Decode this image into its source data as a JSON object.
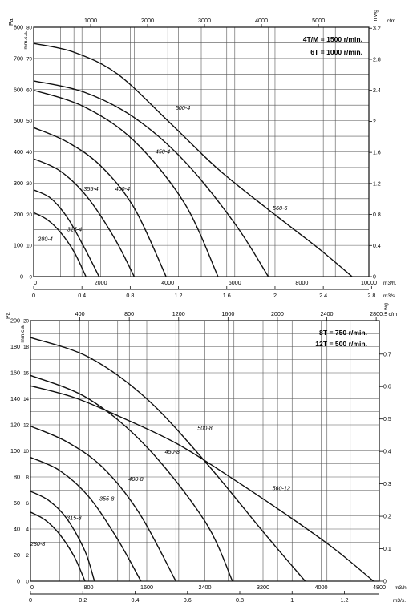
{
  "chart_data": [
    {
      "type": "line",
      "legend": [
        "4T/M = 1500 r/min.",
        "6T = 1000 r/min."
      ],
      "units": {
        "pa": "Pa",
        "mmca": "mm.c.a.",
        "inwg": "in wg",
        "cfm": "cfm",
        "m3h": "m3/h.",
        "m3s": "m3/s."
      },
      "axes": {
        "x_m3h": {
          "range": [
            0,
            10000
          ],
          "ticks": [
            "0",
            "2000",
            "4000",
            "6000",
            "8000",
            "10000"
          ]
        },
        "x_cfm": {
          "ticks": [
            "1000",
            "2000",
            "3000",
            "4000",
            "5000"
          ]
        },
        "x_m3s": {
          "ticks": [
            "0",
            "0.4",
            "0.8",
            "1.2",
            "1.6",
            "2",
            "2.4",
            "2.8"
          ]
        },
        "y_pa": {
          "range": [
            0,
            800
          ],
          "ticks": [
            "0",
            "100",
            "200",
            "300",
            "400",
            "500",
            "600",
            "700",
            "800"
          ]
        },
        "y_mmca": {
          "range": [
            0,
            80
          ],
          "ticks": [
            "0",
            "10",
            "20",
            "30",
            "40",
            "50",
            "60",
            "70",
            "80"
          ]
        },
        "y_inwg": {
          "ticks": [
            "0",
            "0.4",
            "0.8",
            "1.2",
            "1.6",
            "2",
            "2.4",
            "2.8",
            "3.2"
          ]
        }
      },
      "series": [
        {
          "name": "280-4",
          "points": [
            [
              0,
              205
            ],
            [
              400,
              183
            ],
            [
              800,
              142
            ],
            [
              1200,
              80
            ],
            [
              1560,
              0
            ]
          ]
        },
        {
          "name": "315-4",
          "points": [
            [
              0,
              278
            ],
            [
              500,
              252
            ],
            [
              1000,
              190
            ],
            [
              1500,
              95
            ],
            [
              1950,
              0
            ]
          ]
        },
        {
          "name": "355-4",
          "points": [
            [
              0,
              378
            ],
            [
              800,
              338
            ],
            [
              1600,
              255
            ],
            [
              2400,
              125
            ],
            [
              3000,
              0
            ]
          ]
        },
        {
          "name": "400-4",
          "points": [
            [
              0,
              478
            ],
            [
              1000,
              432
            ],
            [
              2000,
              355
            ],
            [
              3000,
              220
            ],
            [
              3950,
              0
            ]
          ]
        },
        {
          "name": "450-4",
          "points": [
            [
              0,
              598
            ],
            [
              1500,
              545
            ],
            [
              3000,
              435
            ],
            [
              4500,
              235
            ],
            [
              5500,
              0
            ]
          ]
        },
        {
          "name": "500-4",
          "points": [
            [
              0,
              628
            ],
            [
              1500,
              592
            ],
            [
              3000,
              510
            ],
            [
              4500,
              370
            ],
            [
              6000,
              170
            ],
            [
              7000,
              0
            ]
          ]
        },
        {
          "name": "560-6",
          "points": [
            [
              0,
              748
            ],
            [
              1200,
              720
            ],
            [
              2500,
              650
            ],
            [
              4000,
              500
            ],
            [
              5500,
              345
            ],
            [
              7000,
              215
            ],
            [
              8500,
              90
            ],
            [
              9500,
              0
            ]
          ]
        }
      ],
      "annotations": [
        {
          "text": "280-4",
          "x": 350,
          "y": 115
        },
        {
          "text": "315-4",
          "x": 1220,
          "y": 145
        },
        {
          "text": "355-4",
          "x": 1710,
          "y": 275
        },
        {
          "text": "400-4",
          "x": 2650,
          "y": 275
        },
        {
          "text": "450-4",
          "x": 3850,
          "y": 395
        },
        {
          "text": "500-4",
          "x": 4450,
          "y": 535
        },
        {
          "text": "560-6",
          "x": 7350,
          "y": 213
        }
      ]
    },
    {
      "type": "line",
      "legend": [
        "8T = 750 r/min.",
        "12T = 500 r/min."
      ],
      "units": {
        "pa": "Pa",
        "mmca": "mm.c.a.",
        "inwg": "in wg",
        "cfm": "cfm",
        "m3h": "m3/h.",
        "m3s": "m3/s."
      },
      "axes": {
        "x_m3h": {
          "range": [
            0,
            4800
          ],
          "ticks": [
            "0",
            "800",
            "1600",
            "2400",
            "3200",
            "4000",
            "4800"
          ]
        },
        "x_cfm": {
          "ticks": [
            "400",
            "800",
            "1200",
            "1600",
            "2000",
            "2400",
            "2800"
          ]
        },
        "x_m3s": {
          "ticks": [
            "0",
            "0.2",
            "0.4",
            "0.6",
            "0.8",
            "1",
            "1.2"
          ]
        },
        "y_pa": {
          "range": [
            0,
            200
          ],
          "ticks": [
            "0",
            "20",
            "40",
            "60",
            "80",
            "100",
            "120",
            "140",
            "160",
            "180",
            "200"
          ]
        },
        "y_mmca": {
          "range": [
            0,
            20
          ],
          "ticks": [
            "0",
            "2",
            "4",
            "6",
            "8",
            "10",
            "12",
            "14",
            "16",
            "18",
            "20"
          ]
        },
        "y_inwg": {
          "ticks": [
            "0",
            "0.1",
            "0.2",
            "0.3",
            "0.4",
            "0.5",
            "0.6",
            "0.7"
          ]
        }
      },
      "series": [
        {
          "name": "280-8",
          "points": [
            [
              0,
              53
            ],
            [
              200,
              47
            ],
            [
              400,
              36
            ],
            [
              600,
              19
            ],
            [
              750,
              0
            ]
          ]
        },
        {
          "name": "315-8",
          "points": [
            [
              0,
              69
            ],
            [
              250,
              62
            ],
            [
              500,
              48
            ],
            [
              750,
              23
            ],
            [
              880,
              0
            ]
          ]
        },
        {
          "name": "355-8",
          "points": [
            [
              0,
              95
            ],
            [
              400,
              85
            ],
            [
              800,
              65
            ],
            [
              1200,
              32
            ],
            [
              1520,
              0
            ]
          ]
        },
        {
          "name": "400-8",
          "points": [
            [
              0,
              119
            ],
            [
              500,
              107
            ],
            [
              1000,
              87
            ],
            [
              1500,
              52
            ],
            [
              2000,
              0
            ]
          ]
        },
        {
          "name": "450-8",
          "points": [
            [
              0,
              158
            ],
            [
              800,
              140
            ],
            [
              1600,
              103
            ],
            [
              2400,
              46
            ],
            [
              2780,
              0
            ]
          ]
        },
        {
          "name": "500-8",
          "points": [
            [
              0,
              187
            ],
            [
              800,
              172
            ],
            [
              1600,
              140
            ],
            [
              2400,
              92
            ],
            [
              3200,
              38
            ],
            [
              3780,
              0
            ]
          ]
        },
        {
          "name": "560-12",
          "points": [
            [
              0,
              150
            ],
            [
              600,
              141
            ],
            [
              1200,
              127
            ],
            [
              2000,
              106
            ],
            [
              2800,
              78
            ],
            [
              3600,
              48
            ],
            [
              4200,
              24
            ],
            [
              4720,
              0
            ]
          ]
        }
      ],
      "annotations": [
        {
          "text": "280-8",
          "x": 100,
          "y": 27
        },
        {
          "text": "315-8",
          "x": 600,
          "y": 47
        },
        {
          "text": "355-8",
          "x": 1050,
          "y": 62
        },
        {
          "text": "400-8",
          "x": 1450,
          "y": 77
        },
        {
          "text": "450-8",
          "x": 1950,
          "y": 98
        },
        {
          "text": "500-8",
          "x": 2400,
          "y": 116
        },
        {
          "text": "560-12",
          "x": 3450,
          "y": 70
        }
      ]
    }
  ]
}
